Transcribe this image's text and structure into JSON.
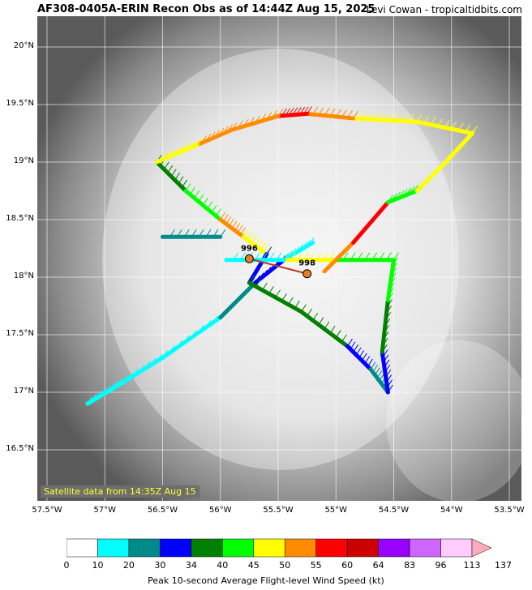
{
  "header": {
    "title": "AF308-0405A-ERIN Recon Obs as of 14:44Z Aug 15, 2025",
    "credit": "Levi Cowan - tropicaltidbits.com"
  },
  "map": {
    "lat_labels": [
      "20°N",
      "19.5°N",
      "19°N",
      "18.5°N",
      "18°N",
      "17.5°N",
      "17°N",
      "16.5°N"
    ],
    "lon_labels": [
      "57.5°W",
      "57°W",
      "56.5°W",
      "56°W",
      "55.5°W",
      "55°W",
      "54.5°W",
      "54°W",
      "53.5°W"
    ],
    "satellite_note": "Satellite data from 14:35Z Aug 15",
    "pressure_points": [
      {
        "label": "996",
        "lon": -55.75,
        "lat": 18.16
      },
      {
        "label": "998",
        "lon": -55.25,
        "lat": 18.03
      }
    ]
  },
  "colorbar": {
    "title": "Peak 10-second Average Flight-level Wind Speed (kt)",
    "ticks": [
      "0",
      "10",
      "20",
      "30",
      "34",
      "40",
      "45",
      "50",
      "55",
      "60",
      "64",
      "83",
      "96",
      "113",
      "137"
    ],
    "colors": [
      "#ffffff",
      "#00ffff",
      "#008b8b",
      "#0000ff",
      "#008000",
      "#00ff00",
      "#ffff00",
      "#ff8c00",
      "#ff0000",
      "#cc0000",
      "#9900ff",
      "#cc66ff",
      "#ffccff",
      "#ffaabb"
    ]
  }
}
